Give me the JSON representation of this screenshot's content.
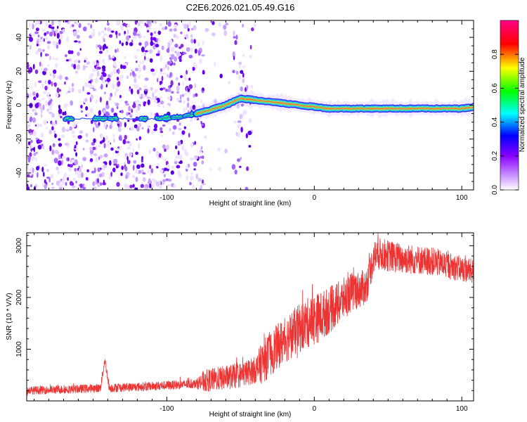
{
  "title": "C2E6.2026.021.05.49.G16",
  "chart_data": [
    {
      "type": "heatmap",
      "xlabel": "Height of straight line (km)",
      "ylabel": "Frequency (Hz)",
      "xlim": [
        -195,
        108
      ],
      "ylim": [
        -50,
        50
      ],
      "xticks": [
        -100,
        0,
        100
      ],
      "yticks": [
        -40,
        -20,
        0,
        20,
        40
      ],
      "colorbar": {
        "label": "Normalized spectral amplitude",
        "range": [
          0,
          1
        ],
        "ticks": [
          0,
          0.2,
          0.4,
          0.6,
          0.8
        ],
        "tick_labels": [
          "0.0",
          "0.2",
          "0.4",
          "0.6",
          "0.8"
        ],
        "colors": [
          "#ffffff",
          "#8800ff",
          "#0000ff",
          "#00ffff",
          "#00ff00",
          "#ffff00",
          "#ff0000",
          "#ff0088"
        ]
      },
      "signal_track": {
        "x": [
          -170,
          -150,
          -130,
          -110,
          -90,
          -75,
          -60,
          -50,
          -40,
          -30,
          -20,
          -10,
          0,
          10,
          20,
          40,
          60,
          80,
          100,
          108
        ],
        "y": [
          -8,
          -8,
          -8,
          -8,
          -7,
          -4,
          0,
          4,
          3,
          2,
          1,
          0,
          -1,
          -2,
          -2,
          -2,
          -2,
          -2,
          -2,
          -1
        ]
      }
    },
    {
      "type": "line",
      "xlabel": "Height of straight line (km)",
      "ylabel": "SNR (10 * V/V)",
      "xlim": [
        -195,
        108
      ],
      "ylim": [
        0,
        3250
      ],
      "xticks": [
        -100,
        0,
        100
      ],
      "yticks": [
        1000,
        2000,
        3000
      ],
      "color": "#ee3333",
      "trend": {
        "x": [
          -195,
          -160,
          -145,
          -142,
          -139,
          -120,
          -100,
          -80,
          -75,
          -50,
          -40,
          -35,
          -25,
          -15,
          -5,
          5,
          15,
          25,
          35,
          40,
          42,
          60,
          80,
          100,
          108
        ],
        "y": [
          200,
          230,
          250,
          800,
          250,
          270,
          300,
          330,
          380,
          500,
          600,
          750,
          1050,
          1300,
          1500,
          1650,
          1850,
          2100,
          2200,
          2750,
          2850,
          2750,
          2700,
          2550,
          2500
        ]
      },
      "noise_amplitude": {
        "x": [
          -195,
          -80,
          -75,
          -40,
          -35,
          0,
          40,
          108
        ],
        "y": [
          80,
          90,
          220,
          260,
          420,
          500,
          320,
          240
        ]
      }
    }
  ]
}
